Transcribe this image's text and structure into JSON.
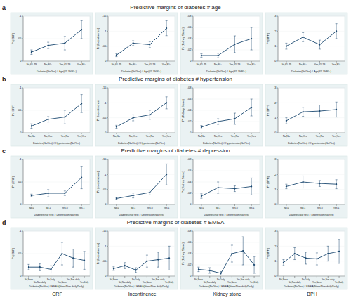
{
  "panels": [
    {
      "label": "a",
      "title": "Predictive margins of diabetes # age"
    },
    {
      "label": "b",
      "title": "Predictive margins of diabetes # hypertension"
    },
    {
      "label": "c",
      "title": "Predictive margins of diabetes # depression"
    },
    {
      "label": "d",
      "title": "Predictive margins of diabetes # EMEA"
    }
  ],
  "column_labels": [
    "CRF",
    "Incontinence",
    "Kidney stone",
    "BPH"
  ],
  "chart_data": [
    {
      "type": "line",
      "x_label": "Diabetes(No/Yes) # Age(65-79/80+)",
      "y_label": "Pr (CRF)",
      "categories": [
        "No,65-79",
        "No,80+",
        "Yes,65-79",
        "Yes,80+"
      ],
      "values": [
        0.02,
        0.035,
        0.04,
        0.07
      ],
      "errors": [
        0.005,
        0.007,
        0.015,
        0.02
      ],
      "color": "#1a476f",
      "marker": "circle",
      "ylim": [
        0,
        0.1
      ],
      "yticks": [
        0,
        {
          "value": 0.05,
          "label": ".05"
        },
        {
          "value": 0.1,
          "label": ".1"
        }
      ]
    },
    {
      "type": "line",
      "x_label": "Diabetes(No/Yes) # Age(65-79/80+)",
      "y_label": "Pr (Incontinence)",
      "categories": [
        "No,65-79",
        "No,80+",
        "Yes,65-79",
        "Yes,80+"
      ],
      "values": [
        0.02,
        0.06,
        0.055,
        0.11
      ],
      "errors": [
        0.005,
        0.008,
        0.01,
        0.025
      ],
      "color": "#1a476f",
      "marker": "circle",
      "ylim": [
        0,
        0.15
      ],
      "yticks": [
        0,
        {
          "value": 0.05,
          "label": ".05"
        },
        {
          "value": 0.1,
          "label": ".1"
        },
        {
          "value": 0.15,
          "label": ".15"
        }
      ]
    },
    {
      "type": "line",
      "x_label": "Diabetes(No/Yes) # Age(65-79/80+)",
      "y_label": "Pr (Kidney Stone)",
      "categories": [
        "No,65-79",
        "No,80+",
        "Yes,65-79",
        "Yes,80+"
      ],
      "values": [
        0.01,
        0.01,
        0.03,
        0.04
      ],
      "errors": [
        0.003,
        0.004,
        0.015,
        0.02
      ],
      "color": "#1a476f",
      "marker": "circle",
      "ylim": [
        0,
        0.08
      ],
      "yticks": [
        0,
        {
          "value": 0.02,
          "label": ".02"
        },
        {
          "value": 0.04,
          "label": ".04"
        },
        {
          "value": 0.06,
          "label": ".06"
        },
        {
          "value": 0.08,
          "label": ".08"
        }
      ]
    },
    {
      "type": "line",
      "x_label": "Diabetes(No/Yes) # Age(65-79/80+)",
      "y_label": "Pr (BPH)",
      "categories": [
        "No,65-79",
        "No,80+",
        "Yes,65-79",
        "Yes,80+"
      ],
      "values": [
        0.1,
        0.16,
        0.11,
        0.2
      ],
      "errors": [
        0.02,
        0.03,
        0.03,
        0.05
      ],
      "color": "#1a476f",
      "marker": "circle",
      "ylim": [
        0,
        0.3
      ],
      "yticks": [
        0,
        {
          "value": 0.1,
          "label": ".1"
        },
        {
          "value": 0.2,
          "label": ".2"
        },
        {
          "value": 0.3,
          "label": ".3"
        }
      ]
    },
    {
      "type": "line",
      "x_label": "Diabetes(No/Yes) # Hypertension(No/Yes)",
      "y_label": "Pr (CRF)",
      "categories": [
        "No,No",
        "No,Yes",
        "Yes,No",
        "Yes,Yes"
      ],
      "values": [
        0.015,
        0.03,
        0.035,
        0.065
      ],
      "errors": [
        0.005,
        0.006,
        0.015,
        0.02
      ],
      "color": "#1a476f",
      "marker": "circle",
      "ylim": [
        0,
        0.1
      ],
      "yticks": [
        0,
        {
          "value": 0.05,
          "label": ".05"
        },
        {
          "value": 0.1,
          "label": ".1"
        }
      ]
    },
    {
      "type": "line",
      "x_label": "Diabetes(No/Yes) # Hypertension(No/Yes)",
      "y_label": "Pr (Incontinence)",
      "categories": [
        "No,No",
        "No,Yes",
        "Yes,No",
        "Yes,Yes"
      ],
      "values": [
        0.02,
        0.05,
        0.06,
        0.1
      ],
      "errors": [
        0.005,
        0.01,
        0.015,
        0.02
      ],
      "color": "#1a476f",
      "marker": "circle",
      "ylim": [
        0,
        0.15
      ],
      "yticks": [
        0,
        {
          "value": 0.05,
          "label": ".05"
        },
        {
          "value": 0.1,
          "label": ".1"
        },
        {
          "value": 0.15,
          "label": ".15"
        }
      ]
    },
    {
      "type": "line",
      "x_label": "Diabetes(No/Yes) # Hypertension(No/Yes)",
      "y_label": "Pr (Kidney Stone)",
      "categories": [
        "No,No",
        "No,Yes",
        "Yes,No",
        "Yes,Yes"
      ],
      "values": [
        0.01,
        0.02,
        0.025,
        0.045
      ],
      "errors": [
        0.003,
        0.005,
        0.01,
        0.015
      ],
      "color": "#1a476f",
      "marker": "circle",
      "ylim": [
        0,
        0.08
      ],
      "yticks": [
        0,
        {
          "value": 0.02,
          "label": ".02"
        },
        {
          "value": 0.04,
          "label": ".04"
        },
        {
          "value": 0.06,
          "label": ".06"
        },
        {
          "value": 0.08,
          "label": ".08"
        }
      ]
    },
    {
      "type": "line",
      "x_label": "Diabetes(No/Yes) # Hypertension(No/Yes)",
      "y_label": "Pr (BPH)",
      "categories": [
        "No,No",
        "No,Yes",
        "Yes,No",
        "Yes,Yes"
      ],
      "values": [
        0.08,
        0.14,
        0.145,
        0.155
      ],
      "errors": [
        0.02,
        0.03,
        0.04,
        0.05
      ],
      "color": "#1a476f",
      "marker": "circle",
      "ylim": [
        0,
        0.3
      ],
      "yticks": [
        0,
        {
          "value": 0.1,
          "label": ".1"
        },
        {
          "value": 0.2,
          "label": ".2"
        },
        {
          "value": 0.3,
          "label": ".3"
        }
      ]
    },
    {
      "type": "line",
      "x_label": "Diabetes(No/Yes) # Depression(No/Yes)",
      "y_label": "Pr (CRF)",
      "categories": [
        "No,0",
        "No,1",
        "Yes,0",
        "Yes,1"
      ],
      "values": [
        0.02,
        0.025,
        0.025,
        0.06
      ],
      "errors": [
        0.003,
        0.008,
        0.005,
        0.025
      ],
      "color": "#1a476f",
      "marker": "circle",
      "ylim": [
        0,
        0.1
      ],
      "yticks": [
        0,
        {
          "value": 0.05,
          "label": ".05"
        },
        {
          "value": 0.1,
          "label": ".1"
        }
      ]
    },
    {
      "type": "line",
      "x_label": "Diabetes(No/Yes) # Depression(No/Yes)",
      "y_label": "Pr (Incontinence)",
      "categories": [
        "No,0",
        "No,1",
        "Yes,0",
        "Yes,1"
      ],
      "values": [
        0.02,
        0.03,
        0.04,
        0.1
      ],
      "errors": [
        0.003,
        0.008,
        0.008,
        0.035
      ],
      "color": "#1a476f",
      "marker": "circle",
      "ylim": [
        0,
        0.15
      ],
      "yticks": [
        0,
        {
          "value": 0.05,
          "label": ".05"
        },
        {
          "value": 0.1,
          "label": ".1"
        },
        {
          "value": 0.15,
          "label": ".15"
        }
      ]
    },
    {
      "type": "line",
      "x_label": "Diabetes(No/Yes) # Depression(No/Yes)",
      "y_label": "Pr (Kidney Stone)",
      "categories": [
        "No,0",
        "No,1",
        "Yes,0",
        "Yes,1"
      ],
      "values": [
        0.015,
        0.03,
        0.028,
        0.032
      ],
      "errors": [
        0.004,
        0.01,
        0.005,
        0.015
      ],
      "color": "#1a476f",
      "marker": "circle",
      "ylim": [
        0,
        0.08
      ],
      "yticks": [
        0,
        {
          "value": 0.02,
          "label": ".02"
        },
        {
          "value": 0.04,
          "label": ".04"
        },
        {
          "value": 0.06,
          "label": ".06"
        },
        {
          "value": 0.08,
          "label": ".08"
        }
      ]
    },
    {
      "type": "line",
      "x_label": "Diabetes(No/Yes) # Depression(No/Yes)",
      "y_label": "Pr (BPH)",
      "categories": [
        "No,0",
        "No,1",
        "Yes,0",
        "Yes,1"
      ],
      "values": [
        0.12,
        0.15,
        0.14,
        0.135
      ],
      "errors": [
        0.015,
        0.04,
        0.02,
        0.03
      ],
      "color": "#1a476f",
      "marker": "circle",
      "ylim": [
        0,
        0.3
      ],
      "yticks": [
        0,
        {
          "value": 0.1,
          "label": ".1"
        },
        {
          "value": 0.2,
          "label": ".2"
        },
        {
          "value": 0.3,
          "label": ".3"
        }
      ]
    },
    {
      "type": "line",
      "x_label": "Diabetes(No/Yes) # EMEA(None/Non-daily/Daily)",
      "y_label": "Pr (CRF)",
      "categories": [
        "No,None",
        "No,Non-daily",
        "No,Daily",
        "Yes,None",
        "Yes,Non-daily",
        "Yes,Daily"
      ],
      "values": [
        0.02,
        0.02,
        0.015,
        0.05,
        0.04,
        0.035
      ],
      "errors": [
        0.006,
        0.008,
        0.008,
        0.025,
        0.02,
        0.02
      ],
      "color": "#1a476f",
      "marker": "circle",
      "ylim": [
        0,
        0.1
      ],
      "yticks": [
        0,
        {
          "value": 0.05,
          "label": ".05"
        },
        {
          "value": 0.1,
          "label": ".1"
        }
      ]
    },
    {
      "type": "line",
      "x_label": "Diabetes(No/Yes) # EMEA(None/Non-daily/Daily)",
      "y_label": "Pr (Incontinence)",
      "categories": [
        "No,None",
        "No,Non-daily",
        "No,Daily",
        "Yes,None",
        "Yes,Non-daily",
        "Yes,Daily"
      ],
      "values": [
        0.025,
        0.035,
        0.02,
        0.05,
        0.055,
        0.06
      ],
      "errors": [
        0.006,
        0.01,
        0.008,
        0.02,
        0.025,
        0.04
      ],
      "color": "#1a476f",
      "marker": "circle",
      "ylim": [
        0,
        0.15
      ],
      "yticks": [
        0,
        {
          "value": 0.05,
          "label": ".05"
        },
        {
          "value": 0.1,
          "label": ".1"
        },
        {
          "value": 0.15,
          "label": ".15"
        }
      ]
    },
    {
      "type": "line",
      "x_label": "Diabetes(No/Yes) # EMEA(None/Non-daily/Daily)",
      "y_label": "Pr (Kidney Stone)",
      "categories": [
        "No,None",
        "No,Non-daily",
        "No,Daily",
        "Yes,None",
        "Yes,Non-daily",
        "Yes,Daily"
      ],
      "values": [
        0.012,
        0.01,
        0.005,
        0.04,
        0.045,
        0.02
      ],
      "errors": [
        0.004,
        0.005,
        0.003,
        0.015,
        0.025,
        0.015
      ],
      "color": "#1a476f",
      "marker": "circle",
      "ylim": [
        0,
        0.08
      ],
      "yticks": [
        0,
        {
          "value": 0.02,
          "label": ".02"
        },
        {
          "value": 0.04,
          "label": ".04"
        },
        {
          "value": 0.06,
          "label": ".06"
        },
        {
          "value": 0.08,
          "label": ".08"
        }
      ]
    },
    {
      "type": "line",
      "x_label": "Diabetes(No/Yes) # EMEA(None/Non-daily/Daily)",
      "y_label": "Pr (BPH)",
      "categories": [
        "No,None",
        "No,Non-daily",
        "No,Daily",
        "Yes,None",
        "Yes,Non-daily",
        "Yes,Daily"
      ],
      "values": [
        0.09,
        0.15,
        0.12,
        0.115,
        0.15,
        0.165
      ],
      "errors": [
        0.02,
        0.04,
        0.04,
        0.04,
        0.05,
        0.08
      ],
      "color": "#1a476f",
      "marker": "circle",
      "ylim": [
        0,
        0.3
      ],
      "yticks": [
        0,
        {
          "value": 0.1,
          "label": ".1"
        },
        {
          "value": 0.2,
          "label": ".2"
        },
        {
          "value": 0.3,
          "label": ".3"
        }
      ]
    }
  ]
}
